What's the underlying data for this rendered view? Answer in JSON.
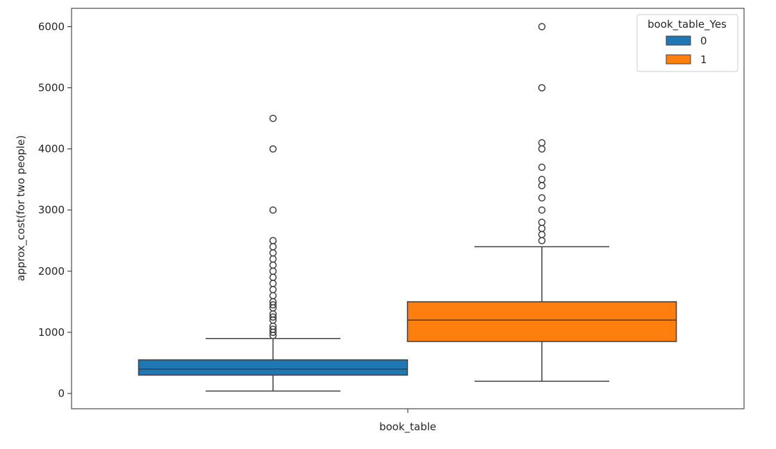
{
  "chart_data": {
    "type": "box",
    "xlabel": "book_table",
    "ylabel": "approx_cost(for two people)",
    "ylim": [
      -250,
      6300
    ],
    "y_ticks": [
      0,
      1000,
      2000,
      3000,
      4000,
      5000,
      6000
    ],
    "grid": false,
    "legend": {
      "title": "book_table_Yes",
      "placement": "top-right",
      "entries": [
        "0",
        "1"
      ]
    },
    "series": [
      {
        "name": "0",
        "color": "#1f77b4",
        "q1": 300,
        "median": 400,
        "q3": 550,
        "whisker_low": 40,
        "whisker_high": 900,
        "outliers": [
          950,
          1000,
          1050,
          1100,
          1200,
          1250,
          1300,
          1400,
          1450,
          1500,
          1600,
          1700,
          1800,
          1900,
          2000,
          2100,
          2200,
          2300,
          2400,
          2500,
          3000,
          4000,
          4500
        ]
      },
      {
        "name": "1",
        "color": "#ff7f0e",
        "q1": 850,
        "median": 1200,
        "q3": 1500,
        "whisker_low": 200,
        "whisker_high": 2400,
        "outliers": [
          2500,
          2600,
          2700,
          2800,
          3000,
          3200,
          3400,
          3500,
          3700,
          4000,
          4100,
          5000,
          6000
        ]
      }
    ]
  }
}
